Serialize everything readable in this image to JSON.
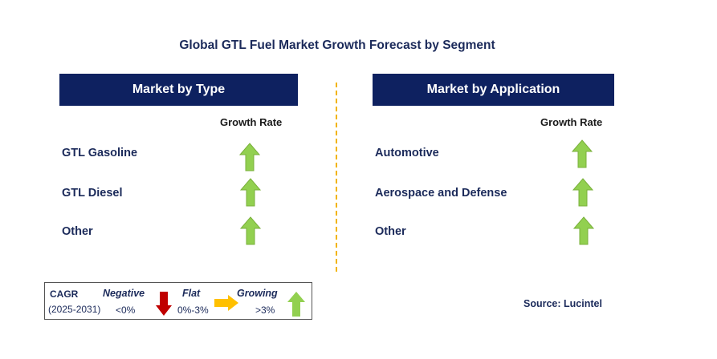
{
  "title": "Global GTL Fuel Market Growth Forecast by Segment",
  "left_panel": {
    "header": "Market by Type",
    "column_header": "Growth Rate",
    "rows": [
      {
        "label": "GTL Gasoline",
        "trend": "growing"
      },
      {
        "label": "GTL Diesel",
        "trend": "growing"
      },
      {
        "label": "Other",
        "trend": "growing"
      }
    ]
  },
  "right_panel": {
    "header": "Market by Application",
    "column_header": "Growth Rate",
    "rows": [
      {
        "label": "Automotive",
        "trend": "growing"
      },
      {
        "label": "Aerospace and Defense",
        "trend": "growing"
      },
      {
        "label": "Other",
        "trend": "growing"
      }
    ]
  },
  "legend": {
    "cagr_label": "CAGR",
    "period": "(2025-2031)",
    "negative": {
      "label": "Negative",
      "range": "<0%",
      "color": "#c00000",
      "icon": "arrow-down-icon"
    },
    "flat": {
      "label": "Flat",
      "range": "0%-3%",
      "color": "#ffc000",
      "icon": "arrow-right-icon"
    },
    "growing": {
      "label": "Growing",
      "range": ">3%",
      "color": "#92d050",
      "icon": "arrow-up-icon"
    }
  },
  "source": "Source: Lucintel",
  "colors": {
    "header_bg": "#0e2160",
    "text": "#1b2a5a",
    "divider": "#f2b400",
    "up_arrow": "#92d050"
  }
}
